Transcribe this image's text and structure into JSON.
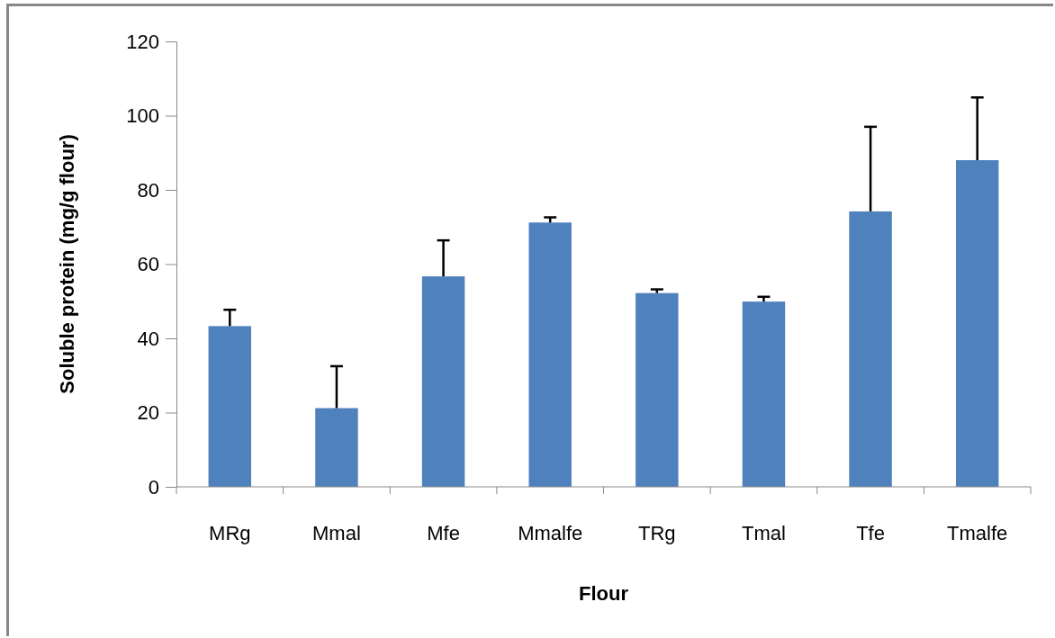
{
  "chart_data": {
    "type": "bar",
    "xlabel": "Flour",
    "ylabel": "Soluble protein (mg/g flour)",
    "categories": [
      "MRg",
      "Mmal",
      "Mfe",
      "Mmalfe",
      "TRg",
      "Tmal",
      "Tfe",
      "Tmalfe"
    ],
    "values": [
      43.3,
      21.2,
      56.7,
      71.2,
      52.2,
      49.9,
      74.2,
      88.0
    ],
    "errors": [
      [
        43.3,
        47.7
      ],
      [
        21.2,
        32.5
      ],
      [
        56.7,
        66.4
      ],
      [
        71.2,
        72.6
      ],
      [
        52.2,
        53.2
      ],
      [
        49.9,
        51.2
      ],
      [
        74.2,
        97.0
      ],
      [
        88.0,
        104.9
      ]
    ],
    "color": "#4f81bd",
    "ylim": [
      0,
      120
    ],
    "yticks": [
      0,
      20,
      40,
      60,
      80,
      100,
      120
    ],
    "grid": false
  }
}
